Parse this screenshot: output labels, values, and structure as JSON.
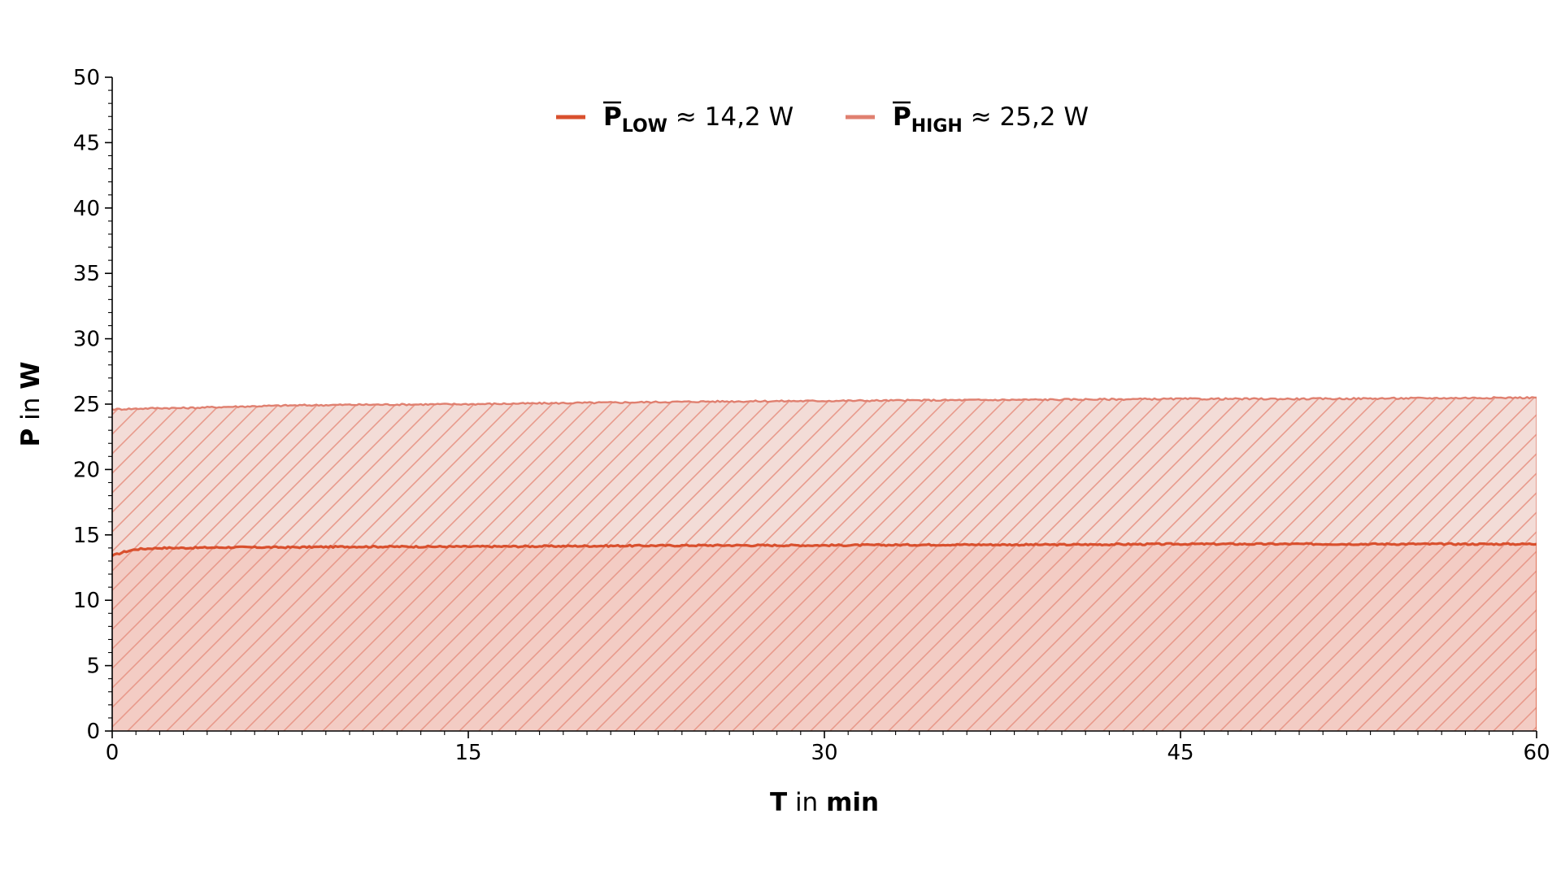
{
  "chart_data": {
    "type": "area",
    "xlabel_main": "T",
    "xlabel_mid": " in ",
    "xlabel_unit": "min",
    "ylabel_main": "P",
    "ylabel_mid": " in ",
    "ylabel_unit": "W",
    "xlim": [
      0,
      60
    ],
    "ylim": [
      0,
      50
    ],
    "x_ticks": [
      "0",
      "15",
      "30",
      "45",
      "60"
    ],
    "y_ticks": [
      "0",
      "5",
      "10",
      "15",
      "20",
      "25",
      "30",
      "35",
      "40",
      "45",
      "50"
    ],
    "grid": false,
    "legend_position": "top-center",
    "hatch": "diagonal",
    "series": [
      {
        "key": "low",
        "legend_symbol": "P",
        "legend_sub": "LOW",
        "legend_value": " ≈ 14,2 W",
        "color": "#d9502e",
        "fill": "#f2c9c1",
        "x": [
          0,
          0.5,
          1,
          2,
          3,
          5,
          7.5,
          10,
          15,
          20,
          25,
          30,
          35,
          40,
          45,
          50,
          55,
          60
        ],
        "y": [
          13.4,
          13.7,
          13.9,
          14.0,
          14.0,
          14.05,
          14.05,
          14.1,
          14.1,
          14.15,
          14.2,
          14.2,
          14.25,
          14.25,
          14.3,
          14.3,
          14.3,
          14.3
        ]
      },
      {
        "key": "high",
        "legend_symbol": "P",
        "legend_sub": "HIGH",
        "legend_value": " ≈ 25,2 W",
        "color": "#e08070",
        "fill": "#f3dcd7",
        "x": [
          0,
          1,
          2,
          3,
          5,
          7.5,
          10,
          15,
          20,
          25,
          30,
          35,
          40,
          45,
          50,
          55,
          60
        ],
        "y": [
          24.6,
          24.65,
          24.7,
          24.7,
          24.8,
          24.9,
          24.95,
          25.0,
          25.1,
          25.2,
          25.25,
          25.3,
          25.35,
          25.4,
          25.4,
          25.45,
          25.5
        ]
      }
    ]
  }
}
